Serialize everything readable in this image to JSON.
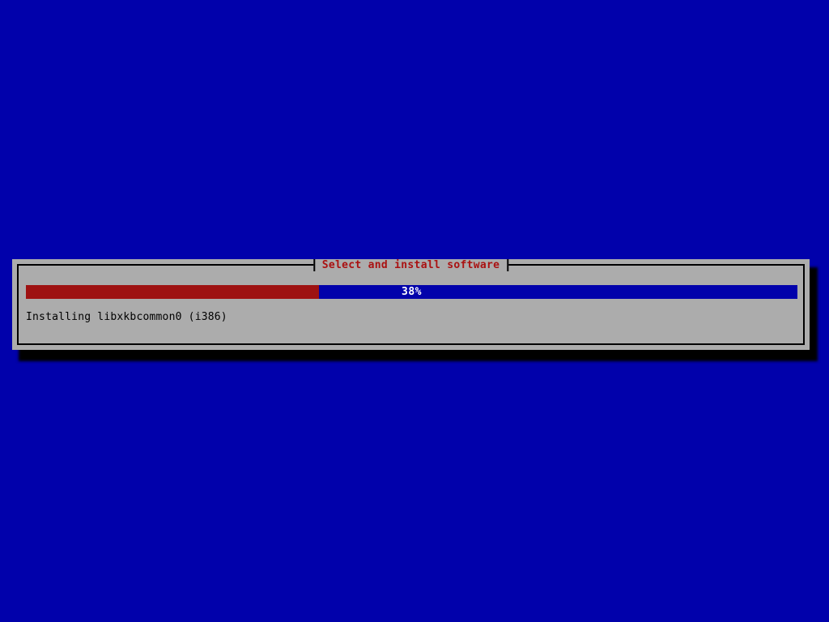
{
  "screen": {
    "background_color": "#0101AB"
  },
  "dialog": {
    "title": "Select and install software",
    "status_text": "Installing libxkbcommon0 (i386)",
    "progress": {
      "percent": 38,
      "label": "38%"
    },
    "colors": {
      "surface": "#ACACAC",
      "border": "#000000",
      "title_text": "#AA1111",
      "progress_fill": "#9E1212",
      "progress_track": "#0101AB",
      "progress_text": "#FFFFFF",
      "status_text": "#000000",
      "shadow": "#000000"
    }
  }
}
